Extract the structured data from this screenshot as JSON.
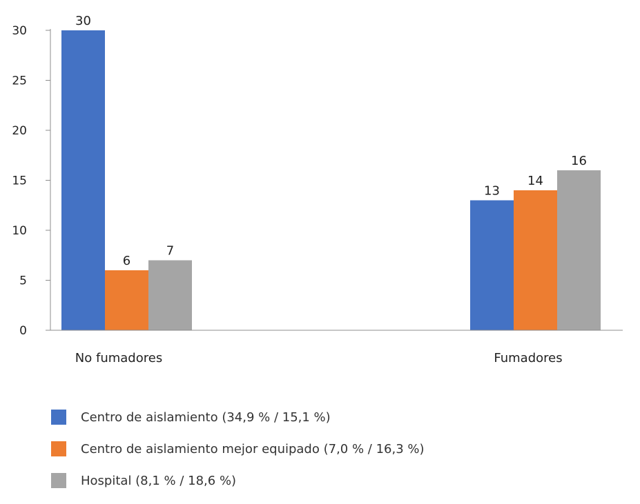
{
  "chart_data": {
    "type": "bar",
    "categories": [
      "No fumadores",
      "Fumadores"
    ],
    "series": [
      {
        "name": "Centro de aislamiento (34,9 % / 15,1 %)",
        "values": [
          30,
          13
        ],
        "data_labels": [
          "30",
          "13"
        ],
        "color": "#4472C4"
      },
      {
        "name": "Centro de aislamiento mejor equipado (7,0 % / 16,3 %)",
        "values": [
          6,
          14
        ],
        "data_labels": [
          "6",
          "14"
        ],
        "color": "#ED7D31"
      },
      {
        "name": "Hospital (8,1 % / 18,6 %)",
        "values": [
          7,
          16
        ],
        "data_labels": [
          "7",
          "16"
        ],
        "color": "#A5A5A5"
      }
    ],
    "ylim": [
      0,
      30
    ],
    "yticks": [
      "0",
      "5",
      "10",
      "15",
      "20",
      "25",
      "30"
    ],
    "grid": false,
    "legend_position": "bottom"
  }
}
